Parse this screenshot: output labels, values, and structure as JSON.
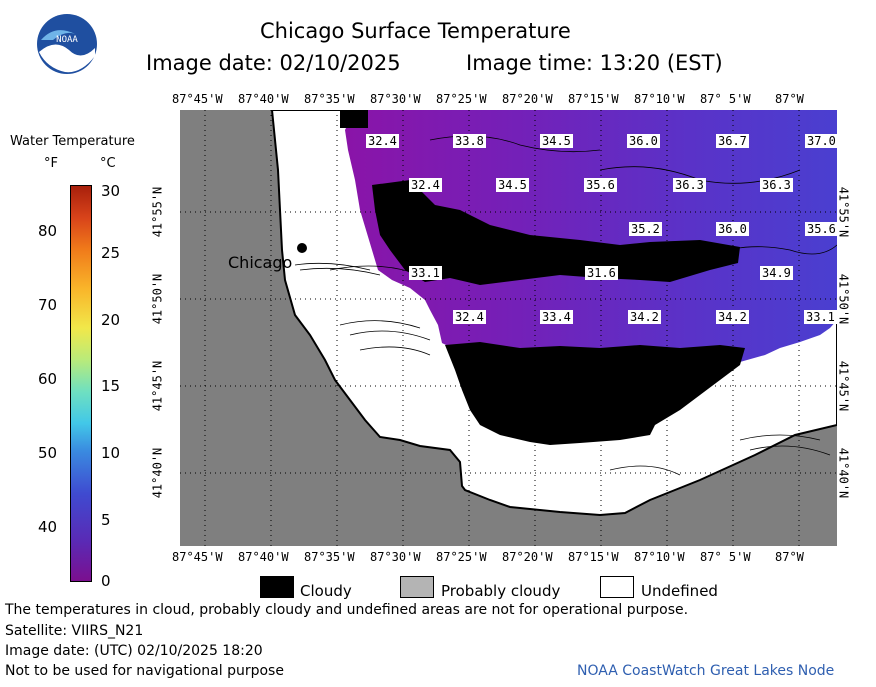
{
  "header": {
    "title": "Chicago Surface Temperature",
    "image_date": "Image date: 02/10/2025",
    "image_time": "Image time: 13:20 (EST)"
  },
  "colorbar": {
    "title": "Water Temperature",
    "unit_f": "°F",
    "unit_c": "°C",
    "f_ticks": [
      "80",
      "70",
      "60",
      "50",
      "40"
    ],
    "c_ticks": [
      "30",
      "25",
      "20",
      "15",
      "10",
      "5",
      "0"
    ]
  },
  "axes": {
    "lon_labels": [
      "87°45'W",
      "87°40'W",
      "87°35'W",
      "87°30'W",
      "87°25'W",
      "87°20'W",
      "87°15'W",
      "87°10'W",
      "87° 5'W",
      "87°W"
    ],
    "lat_labels": [
      "41°55'N",
      "41°50'N",
      "41°45'N",
      "41°40'N"
    ]
  },
  "map": {
    "city_label": "Chicago",
    "temperature_labels": [
      "32.4",
      "33.8",
      "34.5",
      "36.0",
      "36.7",
      "37.0",
      "32.4",
      "34.5",
      "35.6",
      "36.3",
      "36.3",
      "35.2",
      "36.0",
      "35.6",
      "33.1",
      "31.6",
      "34.9",
      "32.4",
      "33.4",
      "34.2",
      "34.2",
      "33.1"
    ]
  },
  "legend": {
    "cloudy": "Cloudy",
    "probably_cloudy": "Probably cloudy",
    "undefined": "Undefined"
  },
  "footer": {
    "disclaimer": "The temperatures in cloud, probably cloudy and undefined areas are not for operational purpose.",
    "satellite": "Satellite: VIIRS_N21",
    "utc_date": "Image date: (UTC) 02/10/2025  18:20",
    "navigation": "Not to be used for navigational purpose",
    "credit": "NOAA CoastWatch Great Lakes Node"
  },
  "logo": {
    "text": "NOAA"
  },
  "colors": {
    "land": "#7f7f7f",
    "cloud": "#000000",
    "water_cold": "#7a17a8",
    "water_warm": "#4a3fcf",
    "credit": "#2f5fb0"
  }
}
